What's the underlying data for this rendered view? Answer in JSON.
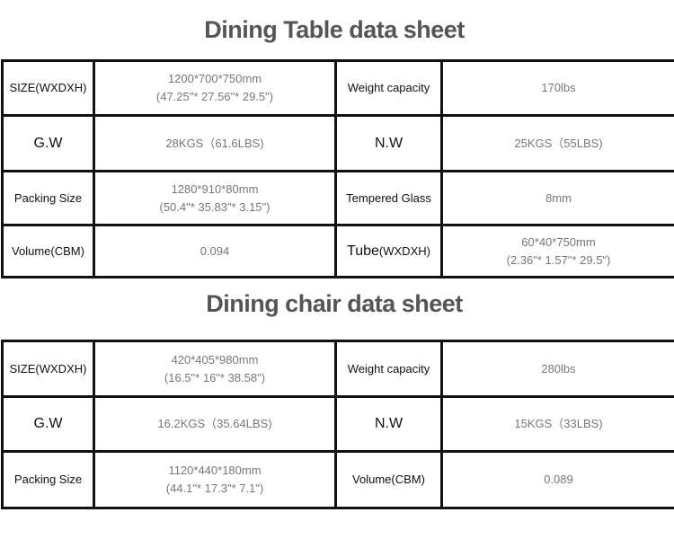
{
  "table_sheet": {
    "title": "Dining Table data sheet",
    "rows": [
      {
        "l1": "SIZE(WXDXH)",
        "v1a": "1200*700*750mm",
        "v1b": "(47.25\"* 27.56\"* 29.5\")",
        "l2": "Weight capacity",
        "v2a": "170lbs",
        "v2b": ""
      },
      {
        "l1": "G.W",
        "v1a": "28KGS（61.6LBS)",
        "v1b": "",
        "l2": "N.W",
        "v2a": "25KGS（55LBS)",
        "v2b": ""
      },
      {
        "l1": "Packing Size",
        "v1a": "1280*910*80mm",
        "v1b": "(50.4\"* 35.83\"* 3.15\")",
        "l2": "Tempered Glass",
        "v2a": "8mm",
        "v2b": ""
      },
      {
        "l1": "Volume(CBM)",
        "v1a": "0.094",
        "v1b": "",
        "l2a": "Tube",
        "l2b": "(WXDXH)",
        "v2a": "60*40*750mm",
        "v2b": "(2.36\"* 1.57\"* 29.5\")"
      }
    ]
  },
  "chair_sheet": {
    "title": "Dining chair data sheet",
    "rows": [
      {
        "l1": "SIZE(WXDXH)",
        "v1a": "420*405*980mm",
        "v1b": "(16.5\"* 16\"* 38.58\")",
        "l2": "Weight capacity",
        "v2a": "280lbs"
      },
      {
        "l1": "G.W",
        "v1a": "16.2KGS（35.64LBS)",
        "v1b": "",
        "l2": "N.W",
        "v2a": "15KGS（33LBS)"
      },
      {
        "l1": "Packing Size",
        "v1a": "1120*440*180mm",
        "v1b": "(44.1\"* 17.3\"* 7.1\")",
        "l2": "Volume(CBM)",
        "v2a": "0.089"
      }
    ]
  }
}
